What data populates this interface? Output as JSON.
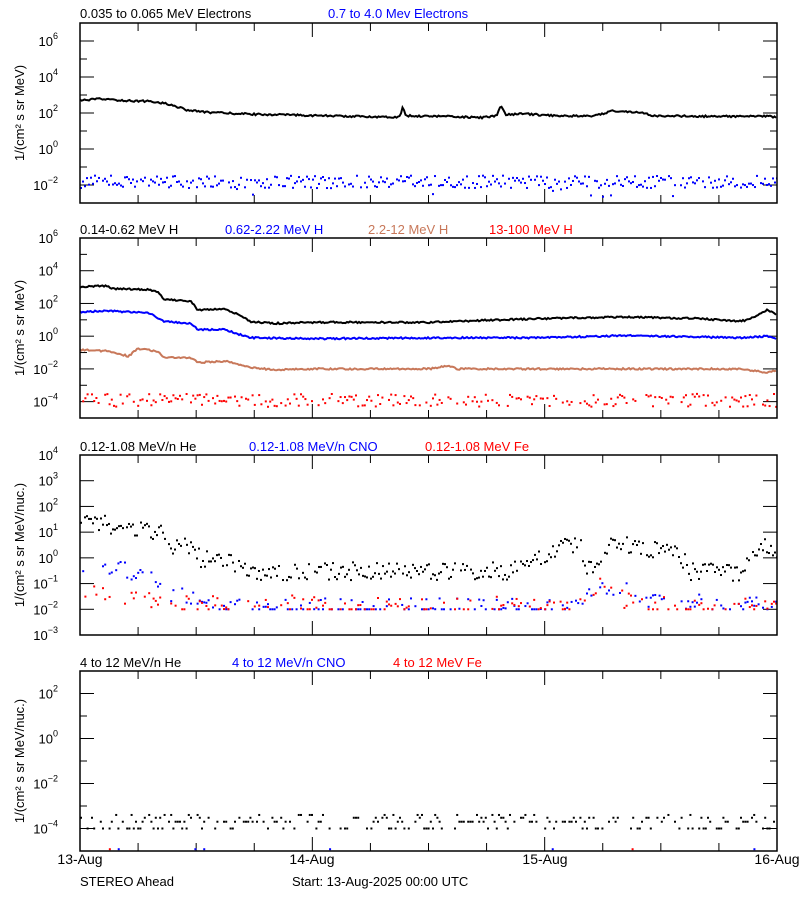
{
  "colors": {
    "black": "#000000",
    "blue": "#0000ff",
    "brown": "#c8785a",
    "red": "#ff0000"
  },
  "footer": {
    "left": "STEREO Ahead",
    "center": "Start: 13-Aug-2025 00:00 UTC"
  },
  "chart_data": [
    {
      "type": "line",
      "xlim": [
        "13-Aug 00:00",
        "16-Aug 00:00"
      ],
      "xtick_labels": [
        "13-Aug",
        "14-Aug",
        "15-Aug",
        "16-Aug"
      ],
      "ylabel": "1/(cm² s sr MeV)",
      "yscale": "log",
      "ylim": [
        0.001,
        10000000
      ],
      "ytick_exponents": [
        -2,
        0,
        2,
        4,
        6
      ],
      "series": [
        {
          "name": "0.035 to 0.065 MeV Electrons",
          "color": "#000000",
          "style": "line",
          "points": [
            [
              "13-Aug 00:00",
              500
            ],
            [
              "13-Aug 02:00",
              600
            ],
            [
              "13-Aug 05:00",
              480
            ],
            [
              "13-Aug 07:00",
              450
            ],
            [
              "13-Aug 09:00",
              330
            ],
            [
              "13-Aug 11:00",
              150
            ],
            [
              "13-Aug 13:00",
              110
            ],
            [
              "13-Aug 18:00",
              85
            ],
            [
              "13-Aug 23:00",
              75
            ],
            [
              "14-Aug 04:00",
              65
            ],
            [
              "14-Aug 09:00",
              60
            ],
            [
              "14-Aug 09:20",
              200
            ],
            [
              "14-Aug 09:40",
              70
            ],
            [
              "14-Aug 14:00",
              65
            ],
            [
              "14-Aug 17:30",
              55
            ],
            [
              "14-Aug 19:00",
              70
            ],
            [
              "14-Aug 19:30",
              250
            ],
            [
              "14-Aug 20:00",
              80
            ],
            [
              "14-Aug 22:00",
              90
            ],
            [
              "15-Aug 00:00",
              75
            ],
            [
              "15-Aug 05:00",
              65
            ],
            [
              "15-Aug 07:00",
              130
            ],
            [
              "15-Aug 10:00",
              110
            ],
            [
              "15-Aug 11:00",
              70
            ],
            [
              "15-Aug 16:00",
              65
            ],
            [
              "15-Aug 23:00",
              65
            ],
            [
              "16-Aug 00:00",
              60
            ]
          ]
        },
        {
          "name": "0.7 to 4.0 Mev Electrons",
          "color": "#0000ff",
          "style": "scatter",
          "points": [
            [
              "13-Aug 00:00",
              0.015
            ],
            [
              "16-Aug 00:00",
              0.015
            ]
          ]
        }
      ]
    },
    {
      "type": "line",
      "xlim": [
        "13-Aug 00:00",
        "16-Aug 00:00"
      ],
      "ylabel": "1/(cm² s sr MeV)",
      "yscale": "log",
      "ylim": [
        1e-05,
        1000000
      ],
      "ytick_exponents": [
        -4,
        -2,
        0,
        2,
        4,
        6
      ],
      "series": [
        {
          "name": "0.14-0.62 MeV H",
          "color": "#000000",
          "style": "line",
          "points": [
            [
              "13-Aug 00:00",
              1000
            ],
            [
              "13-Aug 02:30",
              1200
            ],
            [
              "13-Aug 03:30",
              800
            ],
            [
              "13-Aug 07:00",
              700
            ],
            [
              "13-Aug 08:00",
              500
            ],
            [
              "13-Aug 08:40",
              180
            ],
            [
              "13-Aug 11:30",
              130
            ],
            [
              "13-Aug 12:10",
              40
            ],
            [
              "13-Aug 15:00",
              45
            ],
            [
              "13-Aug 16:30",
              20
            ],
            [
              "13-Aug 17:30",
              8
            ],
            [
              "13-Aug 20:00",
              6
            ],
            [
              "14-Aug 00:00",
              7
            ],
            [
              "14-Aug 12:00",
              7
            ],
            [
              "14-Aug 17:00",
              9
            ],
            [
              "15-Aug 00:00",
              12
            ],
            [
              "15-Aug 08:00",
              15
            ],
            [
              "15-Aug 16:00",
              12
            ],
            [
              "15-Aug 20:00",
              8
            ],
            [
              "15-Aug 21:00",
              10
            ],
            [
              "15-Aug 23:00",
              40
            ],
            [
              "16-Aug 00:00",
              20
            ]
          ]
        },
        {
          "name": "0.62-2.22 MeV H",
          "color": "#0000ff",
          "style": "line",
          "points": [
            [
              "13-Aug 00:00",
              30
            ],
            [
              "13-Aug 02:30",
              35
            ],
            [
              "13-Aug 07:00",
              28
            ],
            [
              "13-Aug 08:40",
              8
            ],
            [
              "13-Aug 11:30",
              6
            ],
            [
              "13-Aug 12:10",
              2.5
            ],
            [
              "13-Aug 15:00",
              2.5
            ],
            [
              "13-Aug 17:30",
              0.8
            ],
            [
              "14-Aug 00:00",
              0.7
            ],
            [
              "14-Aug 12:00",
              0.8
            ],
            [
              "15-Aug 00:00",
              0.8
            ],
            [
              "15-Aug 08:00",
              1.1
            ],
            [
              "15-Aug 20:00",
              0.8
            ],
            [
              "15-Aug 23:00",
              1.0
            ],
            [
              "16-Aug 00:00",
              0.7
            ]
          ]
        },
        {
          "name": "2.2-12 MeV H",
          "color": "#c8785a",
          "style": "line",
          "points": [
            [
              "13-Aug 00:00",
              0.15
            ],
            [
              "13-Aug 03:00",
              0.12
            ],
            [
              "13-Aug 05:00",
              0.06
            ],
            [
              "13-Aug 06:00",
              0.17
            ],
            [
              "13-Aug 08:00",
              0.12
            ],
            [
              "13-Aug 08:40",
              0.05
            ],
            [
              "13-Aug 11:30",
              0.045
            ],
            [
              "13-Aug 12:10",
              0.025
            ],
            [
              "13-Aug 15:00",
              0.03
            ],
            [
              "13-Aug 17:30",
              0.012
            ],
            [
              "13-Aug 20:00",
              0.009
            ],
            [
              "14-Aug 00:00",
              0.01
            ],
            [
              "14-Aug 12:00",
              0.01
            ],
            [
              "14-Aug 14:00",
              0.015
            ],
            [
              "14-Aug 15:00",
              0.01
            ],
            [
              "15-Aug 00:00",
              0.01
            ],
            [
              "15-Aug 20:00",
              0.01
            ],
            [
              "15-Aug 23:00",
              0.006
            ],
            [
              "16-Aug 00:00",
              0.008
            ]
          ]
        },
        {
          "name": "13-100 MeV H",
          "color": "#ff0000",
          "style": "scatter",
          "points": [
            [
              "13-Aug 00:00",
              0.00012
            ],
            [
              "16-Aug 00:00",
              0.00012
            ]
          ]
        }
      ]
    },
    {
      "type": "scatter",
      "xlim": [
        "13-Aug 00:00",
        "16-Aug 00:00"
      ],
      "ylabel": "1/(cm² s sr MeV/nuc.)",
      "yscale": "log",
      "ylim": [
        0.001,
        10000
      ],
      "ytick_exponents": [
        -3,
        -2,
        -1,
        0,
        1,
        2,
        3,
        4
      ],
      "series": [
        {
          "name": "0.12-1.08 MeV/n He",
          "color": "#000000",
          "style": "scatter",
          "points": [
            [
              "13-Aug 00:00",
              25
            ],
            [
              "13-Aug 02:00",
              25
            ],
            [
              "13-Aug 05:00",
              13
            ],
            [
              "13-Aug 07:00",
              15
            ],
            [
              "13-Aug 08:30",
              8
            ],
            [
              "13-Aug 09:00",
              3
            ],
            [
              "13-Aug 12:00",
              2.5
            ],
            [
              "13-Aug 12:30",
              0.8
            ],
            [
              "13-Aug 14:00",
              1.0
            ],
            [
              "13-Aug 16:00",
              0.6
            ],
            [
              "13-Aug 17:00",
              0.3
            ],
            [
              "14-Aug 00:00",
              0.3
            ],
            [
              "14-Aug 20:00",
              0.3
            ],
            [
              "14-Aug 23:00",
              0.8
            ],
            [
              "15-Aug 03:30",
              4
            ],
            [
              "15-Aug 04:30",
              0.4
            ],
            [
              "15-Aug 05:30",
              0.3
            ],
            [
              "15-Aug 07:00",
              4
            ],
            [
              "15-Aug 10:00",
              2.5
            ],
            [
              "15-Aug 13:00",
              1.5
            ],
            [
              "15-Aug 14:00",
              1.3
            ],
            [
              "15-Aug 15:00",
              0.3
            ],
            [
              "15-Aug 20:00",
              0.25
            ],
            [
              "15-Aug 22:00",
              1.5
            ],
            [
              "15-Aug 23:00",
              3
            ],
            [
              "16-Aug 00:00",
              1
            ]
          ]
        },
        {
          "name": "0.12-1.08 MeV/n CNO",
          "color": "#0000ff",
          "style": "scatter",
          "points": [
            [
              "13-Aug 00:00",
              0.5
            ],
            [
              "13-Aug 03:00",
              0.4
            ],
            [
              "13-Aug 06:00",
              0.25
            ],
            [
              "13-Aug 08:30",
              0.15
            ],
            [
              "13-Aug 09:30",
              0.03
            ],
            [
              "13-Aug 12:00",
              0.03
            ],
            [
              "13-Aug 13:00",
              0.012
            ],
            [
              "15-Aug 03:00",
              0.012
            ],
            [
              "15-Aug 06:00",
              0.1
            ],
            [
              "15-Aug 09:00",
              0.04
            ],
            [
              "15-Aug 12:00",
              0.02
            ],
            [
              "16-Aug 00:00",
              0.012
            ]
          ]
        },
        {
          "name": "0.12-1.08 MeV Fe",
          "color": "#ff0000",
          "style": "scatter",
          "points": [
            [
              "13-Aug 00:00",
              0.06
            ],
            [
              "13-Aug 06:00",
              0.03
            ],
            [
              "13-Aug 10:00",
              0.015
            ],
            [
              "15-Aug 03:00",
              0.012
            ],
            [
              "15-Aug 05:00",
              0.08
            ],
            [
              "15-Aug 07:00",
              0.04
            ],
            [
              "15-Aug 10:00",
              0.012
            ],
            [
              "16-Aug 00:00",
              0.012
            ]
          ]
        }
      ]
    },
    {
      "type": "scatter",
      "xlim": [
        "13-Aug 00:00",
        "16-Aug 00:00"
      ],
      "ylabel": "1/(cm² s sr MeV/nuc.)",
      "yscale": "log",
      "ylim": [
        1e-05,
        1000
      ],
      "ytick_exponents": [
        -4,
        -2,
        0,
        2
      ],
      "series": [
        {
          "name": "4 to 12 MeV/n He",
          "color": "#000000",
          "style": "scatter",
          "points": [
            [
              "13-Aug 00:00",
              0.0002
            ],
            [
              "16-Aug 00:00",
              0.0002
            ]
          ]
        },
        {
          "name": "4 to 12 MeV/n CNO",
          "color": "#0000ff",
          "style": "points",
          "points": [
            [
              "13-Aug 04:00",
              1.2e-05
            ],
            [
              "13-Aug 11:55",
              1.2e-05
            ],
            [
              "13-Aug 12:50",
              1.2e-05
            ],
            [
              "14-Aug 01:50",
              1.2e-05
            ],
            [
              "15-Aug 00:50",
              1.2e-05
            ],
            [
              "15-Aug 21:40",
              1.2e-05
            ]
          ]
        },
        {
          "name": "4 to 12 MeV Fe",
          "color": "#ff0000",
          "style": "points",
          "points": [
            [
              "13-Aug 03:05",
              1.2e-05
            ],
            [
              "15-Aug 09:05",
              1.2e-05
            ]
          ]
        }
      ]
    }
  ]
}
